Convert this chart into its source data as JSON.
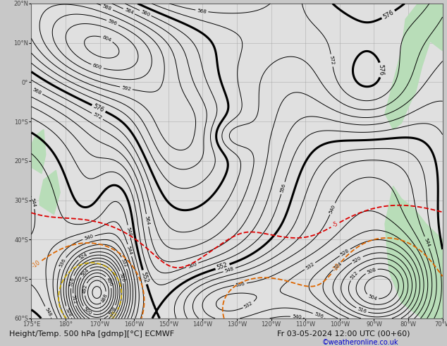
{
  "title_line1": "Height/Temp. 500 hPa [gdmp][°C] ECMWF",
  "title_line2": "Fr 03-05-2024 12:00 UTC (00+60)",
  "copyright": "©weatheronline.co.uk",
  "bg_color": "#e0e0e0",
  "land_color_right": "#b8ddb8",
  "land_color_left": "#b8ddb8",
  "grid_color": "#999999",
  "height_color": "#000000",
  "temp_red_color": "#dd0000",
  "temp_orange_color": "#dd6600",
  "temp_yellow_color": "#ccaa00",
  "temp_green_color": "#559900",
  "temp_cyan_color": "#00aacc",
  "temp_blue_color": "#0055cc",
  "axis_label_color": "#444444",
  "label_fontsize": 6.5,
  "title_fontsize": 8.5,
  "copyright_color": "#0000cc",
  "copyright_fontsize": 7,
  "lon_labels": [
    "175°E",
    "180°",
    "170°W",
    "160°W",
    "150°W",
    "140°W",
    "130°W",
    "120°W",
    "110°W",
    "100°W",
    "90°W",
    "80°W",
    "70°W"
  ],
  "lat_labels": [
    "60°S",
    "50°S",
    "40°S",
    "30°S",
    "20°S",
    "10°S",
    "0°",
    "10°N",
    "20°N"
  ]
}
